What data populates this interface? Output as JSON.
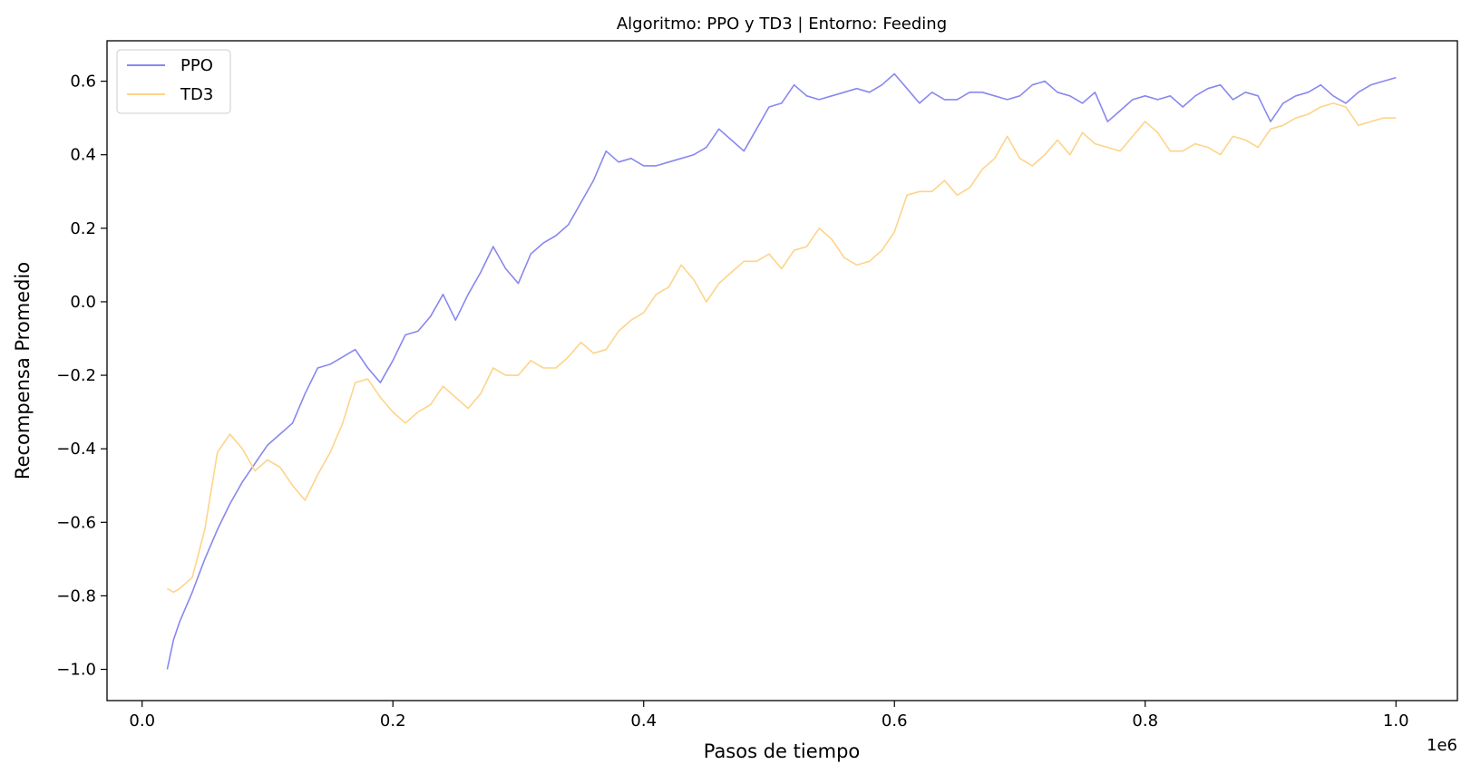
{
  "chart_data": {
    "type": "line",
    "title": "Algoritmo: PPO y TD3 | Entorno: Feeding",
    "xlabel": "Pasos de tiempo",
    "ylabel": "Recompensa Promedio",
    "x_offset_label": "1e6",
    "xlim": [
      -0.028,
      1.049
    ],
    "ylim": [
      -1.085,
      0.71
    ],
    "x_ticks": [
      0.0,
      0.2,
      0.4,
      0.6,
      0.8,
      1.0
    ],
    "x_tick_labels": [
      "0.0",
      "0.2",
      "0.4",
      "0.6",
      "0.8",
      "1.0"
    ],
    "y_ticks": [
      -1.0,
      -0.8,
      -0.6,
      -0.4,
      -0.2,
      0.0,
      0.2,
      0.4,
      0.6
    ],
    "y_tick_labels": [
      "−1.0",
      "−0.8",
      "−0.6",
      "−0.4",
      "−0.2",
      "0.0",
      "0.2",
      "0.4",
      "0.6"
    ],
    "grid": false,
    "legend": "top-left",
    "series": [
      {
        "name": "PPO",
        "color": "#8888ee",
        "x": [
          0.02,
          0.025,
          0.03,
          0.04,
          0.05,
          0.06,
          0.07,
          0.08,
          0.09,
          0.1,
          0.11,
          0.12,
          0.13,
          0.14,
          0.15,
          0.16,
          0.17,
          0.18,
          0.19,
          0.2,
          0.21,
          0.22,
          0.23,
          0.24,
          0.25,
          0.26,
          0.27,
          0.28,
          0.29,
          0.3,
          0.31,
          0.32,
          0.33,
          0.34,
          0.35,
          0.36,
          0.37,
          0.38,
          0.39,
          0.4,
          0.41,
          0.42,
          0.43,
          0.44,
          0.45,
          0.46,
          0.47,
          0.48,
          0.49,
          0.5,
          0.51,
          0.52,
          0.53,
          0.54,
          0.55,
          0.56,
          0.57,
          0.58,
          0.59,
          0.6,
          0.61,
          0.62,
          0.63,
          0.64,
          0.65,
          0.66,
          0.67,
          0.68,
          0.69,
          0.7,
          0.71,
          0.72,
          0.73,
          0.74,
          0.75,
          0.76,
          0.77,
          0.78,
          0.79,
          0.8,
          0.81,
          0.82,
          0.83,
          0.84,
          0.85,
          0.86,
          0.87,
          0.88,
          0.89,
          0.9,
          0.91,
          0.92,
          0.93,
          0.94,
          0.95,
          0.96,
          0.97,
          0.98,
          0.99,
          1.0
        ],
        "y": [
          -1.0,
          -0.92,
          -0.87,
          -0.79,
          -0.7,
          -0.62,
          -0.55,
          -0.49,
          -0.44,
          -0.39,
          -0.36,
          -0.33,
          -0.25,
          -0.18,
          -0.17,
          -0.15,
          -0.13,
          -0.18,
          -0.22,
          -0.16,
          -0.09,
          -0.08,
          -0.04,
          0.02,
          -0.05,
          0.02,
          0.08,
          0.15,
          0.09,
          0.05,
          0.13,
          0.16,
          0.18,
          0.21,
          0.27,
          0.33,
          0.41,
          0.38,
          0.39,
          0.37,
          0.37,
          0.38,
          0.39,
          0.4,
          0.42,
          0.47,
          0.44,
          0.41,
          0.47,
          0.53,
          0.54,
          0.59,
          0.56,
          0.55,
          0.56,
          0.57,
          0.58,
          0.57,
          0.59,
          0.62,
          0.58,
          0.54,
          0.57,
          0.55,
          0.55,
          0.57,
          0.57,
          0.56,
          0.55,
          0.56,
          0.59,
          0.6,
          0.57,
          0.56,
          0.54,
          0.57,
          0.49,
          0.52,
          0.55,
          0.56,
          0.55,
          0.56,
          0.53,
          0.56,
          0.58,
          0.59,
          0.55,
          0.57,
          0.56,
          0.49,
          0.54,
          0.56,
          0.57,
          0.59,
          0.56,
          0.54,
          0.57,
          0.59,
          0.6,
          0.61
        ]
      },
      {
        "name": "TD3",
        "color": "#fdd48a",
        "x": [
          0.02,
          0.025,
          0.03,
          0.04,
          0.05,
          0.06,
          0.07,
          0.08,
          0.09,
          0.1,
          0.11,
          0.12,
          0.13,
          0.14,
          0.15,
          0.16,
          0.17,
          0.18,
          0.19,
          0.2,
          0.21,
          0.22,
          0.23,
          0.24,
          0.25,
          0.26,
          0.27,
          0.28,
          0.29,
          0.3,
          0.31,
          0.32,
          0.33,
          0.34,
          0.35,
          0.36,
          0.37,
          0.38,
          0.39,
          0.4,
          0.41,
          0.42,
          0.43,
          0.44,
          0.45,
          0.46,
          0.47,
          0.48,
          0.49,
          0.5,
          0.51,
          0.52,
          0.53,
          0.54,
          0.55,
          0.56,
          0.57,
          0.58,
          0.59,
          0.6,
          0.61,
          0.62,
          0.63,
          0.64,
          0.65,
          0.66,
          0.67,
          0.68,
          0.69,
          0.7,
          0.71,
          0.72,
          0.73,
          0.74,
          0.75,
          0.76,
          0.77,
          0.78,
          0.79,
          0.8,
          0.81,
          0.82,
          0.83,
          0.84,
          0.85,
          0.86,
          0.87,
          0.88,
          0.89,
          0.9,
          0.91,
          0.92,
          0.93,
          0.94,
          0.95,
          0.96,
          0.97,
          0.98,
          0.99,
          1.0
        ],
        "y": [
          -0.78,
          -0.79,
          -0.78,
          -0.75,
          -0.62,
          -0.41,
          -0.36,
          -0.4,
          -0.46,
          -0.43,
          -0.45,
          -0.5,
          -0.54,
          -0.47,
          -0.41,
          -0.33,
          -0.22,
          -0.21,
          -0.26,
          -0.3,
          -0.33,
          -0.3,
          -0.28,
          -0.23,
          -0.26,
          -0.29,
          -0.25,
          -0.18,
          -0.2,
          -0.2,
          -0.16,
          -0.18,
          -0.18,
          -0.15,
          -0.11,
          -0.14,
          -0.13,
          -0.08,
          -0.05,
          -0.03,
          0.02,
          0.04,
          0.1,
          0.06,
          0.0,
          0.05,
          0.08,
          0.11,
          0.11,
          0.13,
          0.09,
          0.14,
          0.15,
          0.2,
          0.17,
          0.12,
          0.1,
          0.11,
          0.14,
          0.19,
          0.29,
          0.3,
          0.3,
          0.33,
          0.29,
          0.31,
          0.36,
          0.39,
          0.45,
          0.39,
          0.37,
          0.4,
          0.44,
          0.4,
          0.46,
          0.43,
          0.42,
          0.41,
          0.45,
          0.49,
          0.46,
          0.41,
          0.41,
          0.43,
          0.42,
          0.4,
          0.45,
          0.44,
          0.42,
          0.47,
          0.48,
          0.5,
          0.51,
          0.53,
          0.54,
          0.53,
          0.48,
          0.49,
          0.5,
          0.5
        ]
      }
    ]
  }
}
